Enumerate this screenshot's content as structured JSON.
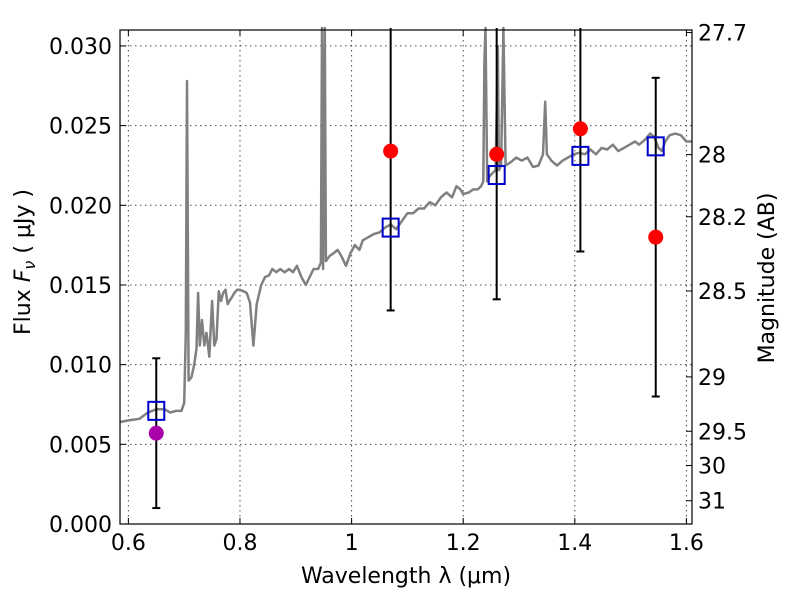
{
  "chart_data": {
    "type": "scatter",
    "xlabel": "Wavelength  λ (μm)",
    "ylabel_prefix": "Flux  ",
    "ylabel_var": "F",
    "ylabel_sub": "ν",
    "ylabel_suffix": "  ( μJy )",
    "y2label": "Magnitude (AB)",
    "xlim": [
      0.585,
      1.61
    ],
    "ylim": [
      0.0,
      0.031
    ],
    "grid": true,
    "x_ticks": [
      {
        "value": 0.6,
        "label": "0.6"
      },
      {
        "value": 0.8,
        "label": "0.8"
      },
      {
        "value": 1.0,
        "label": "1"
      },
      {
        "value": 1.2,
        "label": "1.2"
      },
      {
        "value": 1.4,
        "label": "1.4"
      },
      {
        "value": 1.6,
        "label": "1.6"
      }
    ],
    "y_ticks": [
      {
        "value": 0.0,
        "label": "0.000"
      },
      {
        "value": 0.005,
        "label": "0.005"
      },
      {
        "value": 0.01,
        "label": "0.010"
      },
      {
        "value": 0.015,
        "label": "0.015"
      },
      {
        "value": 0.02,
        "label": "0.020"
      },
      {
        "value": 0.025,
        "label": "0.025"
      },
      {
        "value": 0.03,
        "label": "0.030"
      }
    ],
    "y2_ticks": [
      {
        "label": "27.7",
        "flux": 0.03084
      },
      {
        "label": "28",
        "flux": 0.02318
      },
      {
        "label": "28.2",
        "flux": 0.01928
      },
      {
        "label": "28.5",
        "flux": 0.01462
      },
      {
        "label": "29",
        "flux": 0.00923
      },
      {
        "label": "29.5",
        "flux": 0.00582
      },
      {
        "label": "30",
        "flux": 0.00367
      },
      {
        "label": "31",
        "flux": 0.00146
      }
    ],
    "model_spectrum": {
      "color": "#808080",
      "points": [
        [
          0.585,
          0.0064
        ],
        [
          0.6,
          0.0065
        ],
        [
          0.62,
          0.0066
        ],
        [
          0.635,
          0.007
        ],
        [
          0.65,
          0.0072
        ],
        [
          0.665,
          0.0072
        ],
        [
          0.675,
          0.007
        ],
        [
          0.685,
          0.0071
        ],
        [
          0.695,
          0.0071
        ],
        [
          0.7,
          0.0076
        ],
        [
          0.703,
          0.012
        ],
        [
          0.705,
          0.0278
        ],
        [
          0.708,
          0.009
        ],
        [
          0.713,
          0.0092
        ],
        [
          0.718,
          0.01
        ],
        [
          0.722,
          0.011
        ],
        [
          0.725,
          0.0145
        ],
        [
          0.728,
          0.0112
        ],
        [
          0.732,
          0.0128
        ],
        [
          0.736,
          0.0112
        ],
        [
          0.74,
          0.012
        ],
        [
          0.745,
          0.0105
        ],
        [
          0.75,
          0.014
        ],
        [
          0.754,
          0.0112
        ],
        [
          0.758,
          0.0116
        ],
        [
          0.762,
          0.0146
        ],
        [
          0.766,
          0.014
        ],
        [
          0.77,
          0.0145
        ],
        [
          0.774,
          0.0147
        ],
        [
          0.778,
          0.0138
        ],
        [
          0.781,
          0.014
        ],
        [
          0.785,
          0.0142
        ],
        [
          0.79,
          0.0145
        ],
        [
          0.795,
          0.0147
        ],
        [
          0.8,
          0.0147
        ],
        [
          0.806,
          0.0146
        ],
        [
          0.812,
          0.0145
        ],
        [
          0.818,
          0.0139
        ],
        [
          0.824,
          0.0112
        ],
        [
          0.83,
          0.0138
        ],
        [
          0.838,
          0.015
        ],
        [
          0.845,
          0.0155
        ],
        [
          0.852,
          0.0156
        ],
        [
          0.858,
          0.016
        ],
        [
          0.865,
          0.0158
        ],
        [
          0.872,
          0.016
        ],
        [
          0.88,
          0.0158
        ],
        [
          0.888,
          0.016
        ],
        [
          0.895,
          0.0158
        ],
        [
          0.902,
          0.0162
        ],
        [
          0.91,
          0.0155
        ],
        [
          0.918,
          0.015
        ],
        [
          0.925,
          0.0155
        ],
        [
          0.932,
          0.016
        ],
        [
          0.94,
          0.016
        ],
        [
          0.945,
          0.0164
        ],
        [
          0.947,
          0.032
        ],
        [
          0.949,
          0.016
        ],
        [
          0.952,
          0.032
        ],
        [
          0.954,
          0.0165
        ],
        [
          0.96,
          0.0168
        ],
        [
          0.968,
          0.017
        ],
        [
          0.975,
          0.0172
        ],
        [
          0.982,
          0.0168
        ],
        [
          0.99,
          0.0162
        ],
        [
          0.998,
          0.017
        ],
        [
          1.006,
          0.0175
        ],
        [
          1.014,
          0.0172
        ],
        [
          1.02,
          0.0178
        ],
        [
          1.03,
          0.018
        ],
        [
          1.04,
          0.0182
        ],
        [
          1.05,
          0.0183
        ],
        [
          1.06,
          0.0186
        ],
        [
          1.07,
          0.0188
        ],
        [
          1.08,
          0.0185
        ],
        [
          1.09,
          0.019
        ],
        [
          1.1,
          0.0195
        ],
        [
          1.11,
          0.0195
        ],
        [
          1.12,
          0.0198
        ],
        [
          1.13,
          0.0198
        ],
        [
          1.14,
          0.0202
        ],
        [
          1.15,
          0.02
        ],
        [
          1.16,
          0.0205
        ],
        [
          1.17,
          0.0208
        ],
        [
          1.18,
          0.0205
        ],
        [
          1.188,
          0.0212
        ],
        [
          1.195,
          0.021
        ],
        [
          1.2,
          0.0207
        ],
        [
          1.21,
          0.0208
        ],
        [
          1.218,
          0.021
        ],
        [
          1.226,
          0.021
        ],
        [
          1.232,
          0.0212
        ],
        [
          1.236,
          0.0215
        ],
        [
          1.238,
          0.029
        ],
        [
          1.24,
          0.032
        ],
        [
          1.243,
          0.0215
        ],
        [
          1.247,
          0.0218
        ],
        [
          1.252,
          0.022
        ],
        [
          1.258,
          0.0222
        ],
        [
          1.262,
          0.03
        ],
        [
          1.264,
          0.0222
        ],
        [
          1.268,
          0.0225
        ],
        [
          1.272,
          0.032
        ],
        [
          1.276,
          0.0225
        ],
        [
          1.285,
          0.0227
        ],
        [
          1.295,
          0.023
        ],
        [
          1.305,
          0.0228
        ],
        [
          1.315,
          0.023
        ],
        [
          1.325,
          0.0224
        ],
        [
          1.335,
          0.0225
        ],
        [
          1.343,
          0.0232
        ],
        [
          1.347,
          0.0265
        ],
        [
          1.35,
          0.0232
        ],
        [
          1.358,
          0.0228
        ],
        [
          1.368,
          0.0225
        ],
        [
          1.378,
          0.0228
        ],
        [
          1.388,
          0.023
        ],
        [
          1.398,
          0.0232
        ],
        [
          1.408,
          0.0233
        ],
        [
          1.418,
          0.0232
        ],
        [
          1.428,
          0.0235
        ],
        [
          1.438,
          0.0232
        ],
        [
          1.448,
          0.0236
        ],
        [
          1.458,
          0.0235
        ],
        [
          1.468,
          0.0238
        ],
        [
          1.478,
          0.0234
        ],
        [
          1.488,
          0.0236
        ],
        [
          1.498,
          0.0238
        ],
        [
          1.508,
          0.024
        ],
        [
          1.515,
          0.0238
        ],
        [
          1.522,
          0.024
        ],
        [
          1.528,
          0.0242
        ],
        [
          1.535,
          0.0245
        ],
        [
          1.542,
          0.0243
        ],
        [
          1.55,
          0.0236
        ],
        [
          1.556,
          0.0234
        ],
        [
          1.562,
          0.024
        ],
        [
          1.57,
          0.0244
        ],
        [
          1.58,
          0.0245
        ],
        [
          1.59,
          0.0244
        ],
        [
          1.6,
          0.024
        ],
        [
          1.61,
          0.024
        ]
      ]
    },
    "series": [
      {
        "marker": "open-square",
        "color": "#0000cc",
        "points": [
          {
            "x": 0.65,
            "y": 0.0071
          },
          {
            "x": 1.07,
            "y": 0.0186
          },
          {
            "x": 1.26,
            "y": 0.0219
          },
          {
            "x": 1.41,
            "y": 0.0231
          },
          {
            "x": 1.545,
            "y": 0.0237
          }
        ]
      },
      {
        "marker": "filled-circle",
        "color": "#ff0000",
        "points": [
          {
            "x": 1.07,
            "y": 0.0234,
            "err_low": 0.0134,
            "err_high": 0.032
          },
          {
            "x": 1.26,
            "y": 0.0232,
            "err_low": 0.0141,
            "err_high": 0.032
          },
          {
            "x": 1.41,
            "y": 0.0248,
            "err_low": 0.0171,
            "err_high": 0.032
          },
          {
            "x": 1.545,
            "y": 0.018,
            "err_low": 0.008,
            "err_high": 0.028
          }
        ]
      },
      {
        "marker": "filled-circle",
        "color": "#aa00aa",
        "points": [
          {
            "x": 0.65,
            "y": 0.0057,
            "err_low": 0.001,
            "err_high": 0.0104
          }
        ]
      }
    ]
  }
}
